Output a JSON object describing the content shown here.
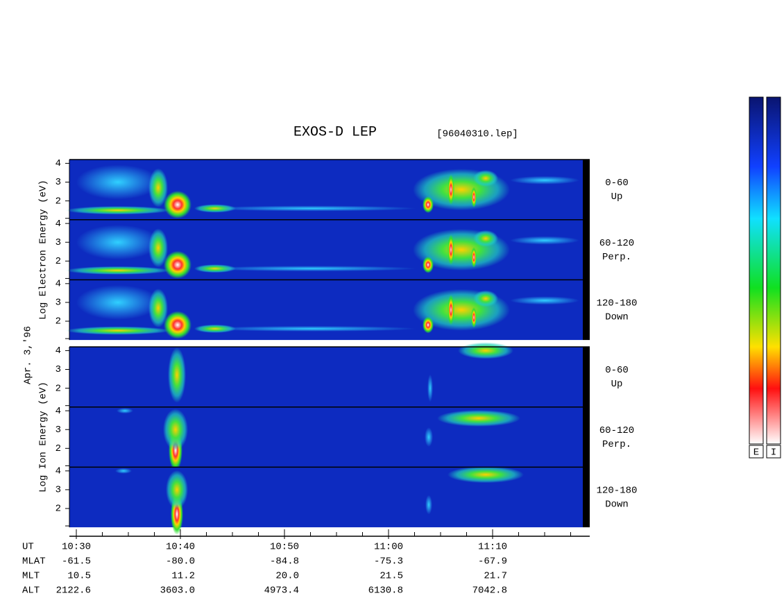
{
  "title": "EXOS-D LEP",
  "file": "[96040310.lep]",
  "date_label": "Apr. 3,'96",
  "ylim": [
    1,
    4.2
  ],
  "yticks": [
    2,
    3,
    4
  ],
  "groups": [
    {
      "y_label": "Log Electron Energy (eV)",
      "panels": [
        {
          "channel": "0-60",
          "direction": "Up"
        },
        {
          "channel": "60-120",
          "direction": "Perp."
        },
        {
          "channel": "120-180",
          "direction": "Down"
        }
      ]
    },
    {
      "y_label": "Log Ion Energy (eV)",
      "panels": [
        {
          "channel": "0-60",
          "direction": "Up"
        },
        {
          "channel": "60-120",
          "direction": "Perp."
        },
        {
          "channel": "120-180",
          "direction": "Down"
        }
      ]
    }
  ],
  "time_label": "UT",
  "time_ticks": [
    "10:30",
    "10:40",
    "10:50",
    "11:00",
    "11:10"
  ],
  "orbit_rows": [
    {
      "name": "MLAT",
      "values": [
        "-61.5",
        "-80.0",
        "-84.8",
        "-75.3",
        "-67.9"
      ]
    },
    {
      "name": "MLT",
      "values": [
        "10.5",
        "11.2",
        "20.0",
        "21.5",
        "21.7"
      ]
    },
    {
      "name": "ALT",
      "values": [
        "2122.6",
        "3603.0",
        "4973.4",
        "6130.8",
        "7042.8"
      ]
    }
  ],
  "colorbars": [
    "E",
    "I"
  ]
}
